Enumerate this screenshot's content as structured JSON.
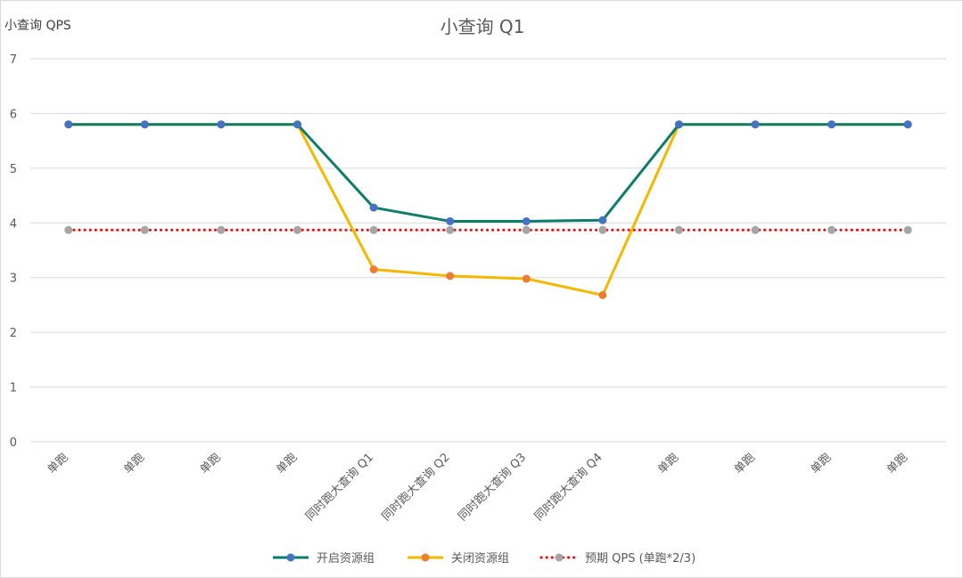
{
  "chart_data": {
    "type": "line",
    "title": "小查询 Q1",
    "ylabel": "小查询 QPS",
    "xlabel": "",
    "ylim": [
      0,
      7
    ],
    "yticks": [
      "0",
      "1",
      "2",
      "3",
      "4",
      "5",
      "6",
      "7"
    ],
    "grid": true,
    "legend_position": "bottom",
    "categories": [
      "单跑",
      "单跑",
      "单跑",
      "单跑",
      "同时跑大查询 Q1",
      "同时跑大查询 Q2",
      "同时跑大查询 Q3",
      "同时跑大查询 Q4",
      "单跑",
      "单跑",
      "单跑",
      "单跑"
    ],
    "series": [
      {
        "name": "开启资源组",
        "color": "#0E7C6B",
        "marker_color": "#4472C4",
        "style": "solid",
        "values": [
          5.8,
          5.8,
          5.8,
          5.8,
          4.28,
          4.03,
          4.03,
          4.05,
          5.8,
          5.8,
          5.8,
          5.8
        ]
      },
      {
        "name": "关闭资源组",
        "color": "#F5B800",
        "marker_color": "#ED7D31",
        "style": "solid",
        "values": [
          5.8,
          5.8,
          5.8,
          5.8,
          3.15,
          3.03,
          2.98,
          2.68,
          5.8,
          5.8,
          5.8,
          5.8
        ]
      },
      {
        "name": "预期 QPS (单跑*2/3)",
        "color": "#FF0000",
        "marker_color": "#A5A5A5",
        "style": "dotted",
        "values": [
          3.87,
          3.87,
          3.87,
          3.87,
          3.87,
          3.87,
          3.87,
          3.87,
          3.87,
          3.87,
          3.87,
          3.87
        ]
      }
    ]
  }
}
